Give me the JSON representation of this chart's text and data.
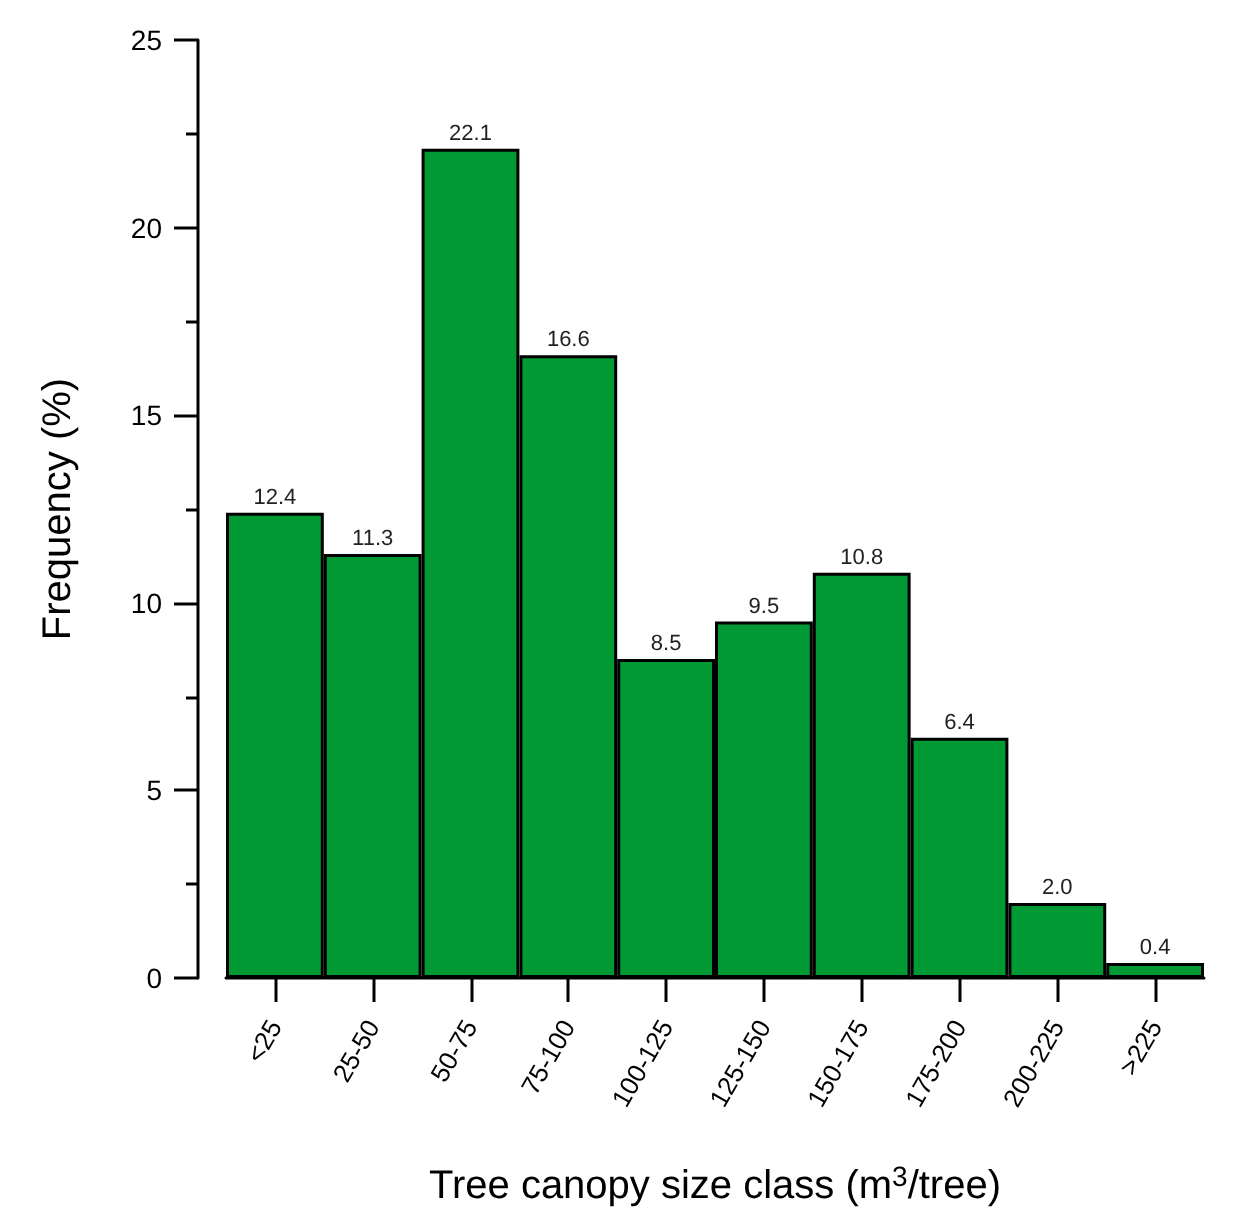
{
  "chart_data": {
    "type": "bar",
    "categories": [
      "<25",
      "25-50",
      "50-75",
      "75-100",
      "100-125",
      "125-150",
      "150-175",
      "175-200",
      "200-225",
      ">225"
    ],
    "values": [
      12.4,
      11.3,
      22.1,
      16.6,
      8.5,
      9.5,
      10.8,
      6.4,
      2.0,
      0.4
    ],
    "value_labels": [
      "12.4",
      "11.3",
      "22.1",
      "16.6",
      "8.5",
      "9.5",
      "10.8",
      "6.4",
      "2.0",
      "0.4"
    ],
    "color": "#009933",
    "xlabel": "Tree canopy size class (m$^{3}$/tree)",
    "ylabel": "Frequency (%)",
    "ylim": [
      0,
      25
    ],
    "yticks": [
      0,
      5,
      10,
      15,
      20,
      25
    ],
    "grid": false
  }
}
